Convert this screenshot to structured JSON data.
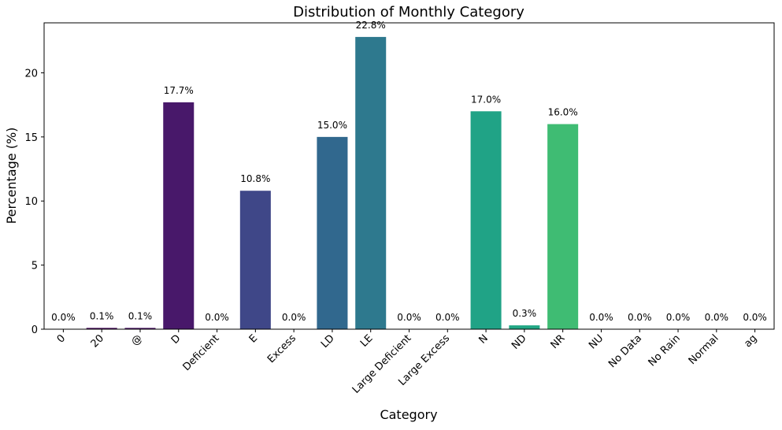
{
  "chart_data": {
    "type": "bar",
    "title": "Distribution of Monthly Category",
    "xlabel": "Category",
    "ylabel": "Percentage (%)",
    "categories": [
      "0",
      "20",
      "@",
      "D",
      "Deficient",
      "E",
      "Excess",
      "LD",
      "LE",
      "Large Deficient",
      "Large Excess",
      "N",
      "ND",
      "NR",
      "NU",
      "No Data",
      "No Rain",
      "Normal",
      "ag"
    ],
    "values": [
      0.0,
      0.1,
      0.1,
      17.7,
      0.0,
      10.8,
      0.0,
      15.0,
      22.8,
      0.0,
      0.0,
      17.0,
      0.3,
      16.0,
      0.0,
      0.0,
      0.0,
      0.0,
      0.0
    ],
    "value_labels": [
      "0.0%",
      "0.1%",
      "0.1%",
      "17.7%",
      "0.0%",
      "10.8%",
      "0.0%",
      "15.0%",
      "22.8%",
      "0.0%",
      "0.0%",
      "17.0%",
      "0.3%",
      "16.0%",
      "0.0%",
      "0.0%",
      "0.0%",
      "0.0%",
      "0.0%"
    ],
    "colors": [
      "#440154",
      "#46085c",
      "#471064",
      "#48186a",
      "#46307e",
      "#3f4788",
      "#375b8d",
      "#31688e",
      "#2e798e",
      "#2a8a8c",
      "#23968b",
      "#20a386",
      "#22a785",
      "#3fbc73",
      "#60ca60",
      "#7ad151",
      "#a0da39",
      "#c0df25",
      "#e8e419"
    ],
    "yticks": [
      0,
      5,
      10,
      15,
      20
    ],
    "ylim": [
      0,
      23.9
    ],
    "grid": false,
    "legend": "none"
  }
}
